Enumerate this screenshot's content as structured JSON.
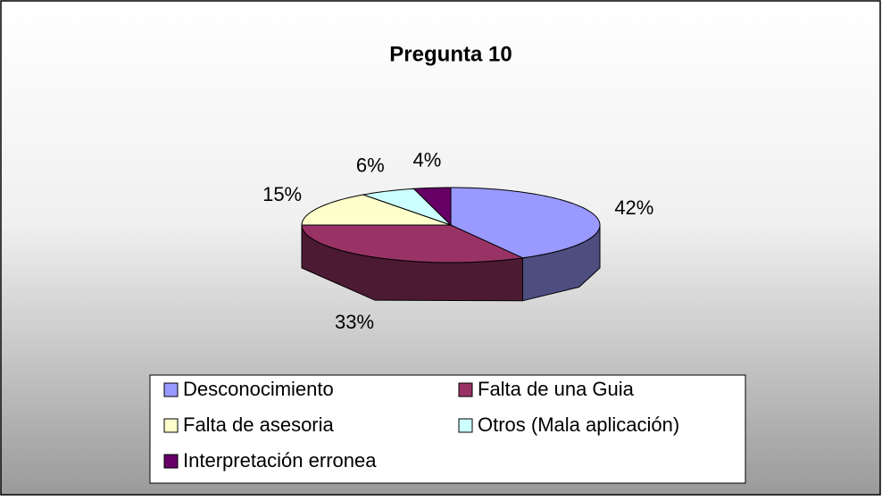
{
  "chart_data": {
    "type": "pie",
    "title": "Pregunta 10",
    "categories": [
      "Desconocimiento",
      "Falta de una Guia",
      "Falta de asesoria",
      "Otros (Mala aplicación)",
      "Interpretación erronea"
    ],
    "values": [
      42,
      33,
      15,
      6,
      4
    ],
    "value_labels": [
      "42%",
      "33%",
      "15%",
      "6%",
      "4%"
    ],
    "colors": [
      "#9999ff",
      "#993366",
      "#ffffcc",
      "#ccffff",
      "#660066"
    ],
    "legend": "bottom"
  }
}
